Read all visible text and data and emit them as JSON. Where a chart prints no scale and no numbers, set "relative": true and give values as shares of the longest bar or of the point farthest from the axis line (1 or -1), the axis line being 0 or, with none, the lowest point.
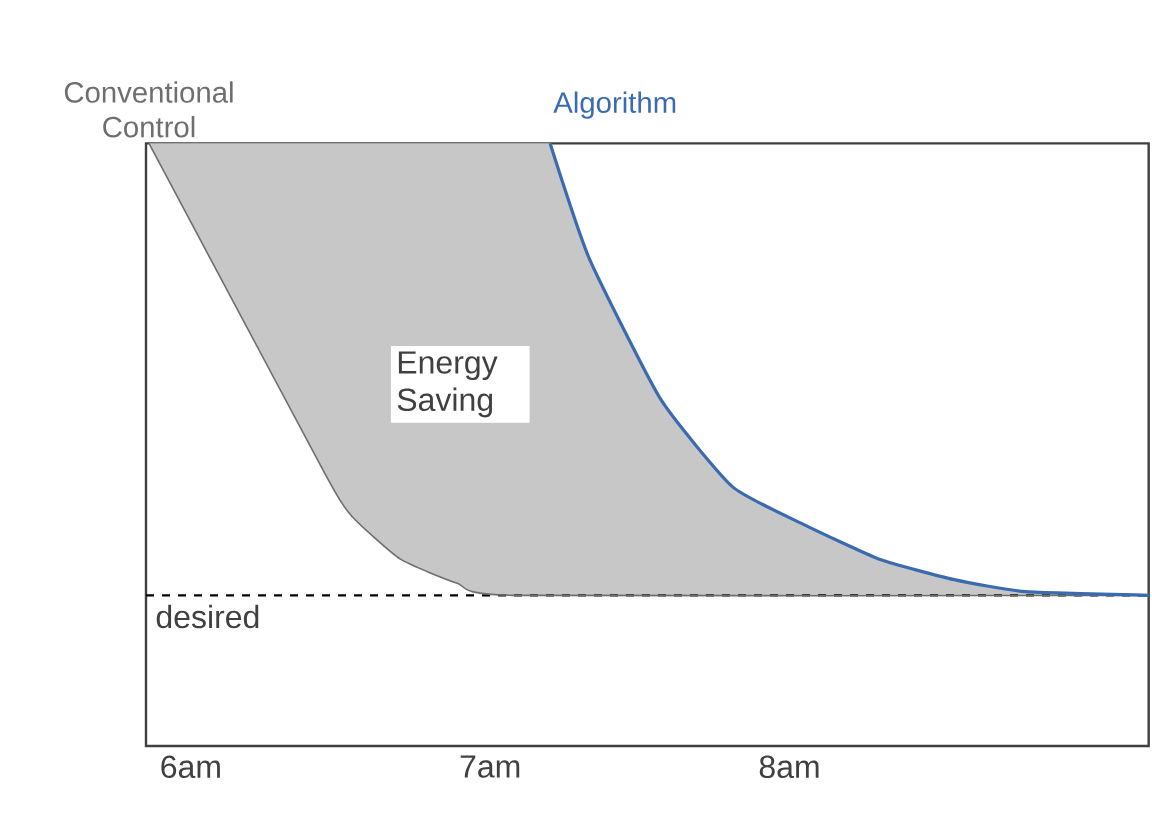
{
  "chart_data": {
    "type": "line",
    "relative": true,
    "xlim": [
      5.85,
      9.2
    ],
    "xticks": [
      {
        "value": 6,
        "label": "6am"
      },
      {
        "value": 7,
        "label": "7am"
      },
      {
        "value": 8,
        "label": "8am"
      }
    ],
    "series": [
      {
        "name": "Conventional Control",
        "color": "#6e6e6e",
        "x": [
          5.86,
          6.45,
          6.54,
          6.7,
          6.89,
          7.08,
          9.2
        ],
        "values": [
          1,
          0.45,
          0.38,
          0.31,
          0.27,
          0.25,
          0.25
        ]
      },
      {
        "name": "Algorithm",
        "color": "#3a6ab0",
        "x": [
          7.2,
          7.33,
          7.57,
          7.81,
          8.05,
          8.3,
          8.55,
          8.79,
          9.2
        ],
        "values": [
          1,
          0.81,
          0.575,
          0.43,
          0.367,
          0.31,
          0.276,
          0.256,
          0.25
        ]
      }
    ],
    "ref_lines": [
      {
        "axis": "y",
        "value": 0.25,
        "label": "desired",
        "color": "#000000",
        "line_style": "dashed"
      }
    ],
    "annotations": [
      "Energy Saving"
    ],
    "grid": false,
    "marker": "none",
    "line_style": "solid"
  }
}
